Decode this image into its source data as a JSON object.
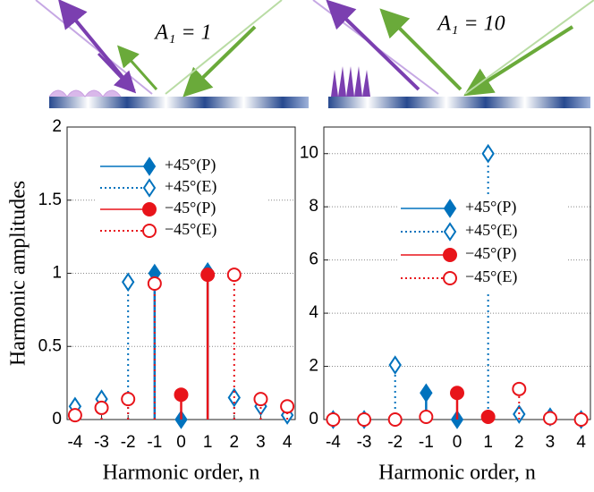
{
  "chart_data": [
    {
      "type": "stem",
      "annotation": "A₁ = 1",
      "ylabel": "Harmonic amplitudes",
      "xlabel": "Harmonic order, n",
      "xlim": [
        -4.3,
        4.3
      ],
      "xticks": [
        -4,
        -3,
        -2,
        -1,
        0,
        1,
        2,
        3,
        4
      ],
      "ylim": [
        0,
        2
      ],
      "yticks": [
        0,
        0.5,
        1,
        1.5,
        2
      ],
      "grid": true,
      "series": [
        {
          "name": "+45°(P)",
          "color": "#0072bd",
          "marker": "diamond",
          "filled": true,
          "line": "solid",
          "x": [
            -1,
            0,
            1
          ],
          "values": [
            1.0,
            0,
            1.01
          ]
        },
        {
          "name": "+45°(E)",
          "color": "#0072bd",
          "marker": "diamond",
          "filled": false,
          "line": "dotted",
          "x": [
            -4,
            -3,
            -2,
            2,
            3,
            4
          ],
          "values": [
            0.09,
            0.14,
            0.94,
            0.15,
            0.09,
            0.03
          ]
        },
        {
          "name": "−45°(P)",
          "color": "#e8141a",
          "marker": "circle",
          "filled": true,
          "line": "solid",
          "x": [
            0,
            1
          ],
          "values": [
            0.17,
            0.99
          ]
        },
        {
          "name": "−45°(E)",
          "color": "#e8141a",
          "marker": "circle",
          "filled": false,
          "line": "dotted",
          "x": [
            -4,
            -3,
            -2,
            -1,
            2,
            3,
            4
          ],
          "values": [
            0.03,
            0.08,
            0.14,
            0.93,
            0.99,
            0.14,
            0.09
          ]
        }
      ]
    },
    {
      "type": "stem",
      "annotation": "A₁ = 10",
      "xlabel": "Harmonic order, n",
      "xlim": [
        -4.3,
        4.3
      ],
      "xticks": [
        -4,
        -3,
        -2,
        -1,
        0,
        1,
        2,
        3,
        4
      ],
      "ylim": [
        0,
        11
      ],
      "yticks": [
        0,
        2,
        4,
        6,
        8,
        10
      ],
      "grid": true,
      "series": [
        {
          "name": "+45°(P)",
          "color": "#0072bd",
          "marker": "diamond",
          "filled": true,
          "line": "solid",
          "x": [
            -1,
            0
          ],
          "values": [
            1.0,
            0
          ]
        },
        {
          "name": "+45°(E)",
          "color": "#0072bd",
          "marker": "diamond",
          "filled": false,
          "line": "dotted",
          "x": [
            -4,
            -3,
            -2,
            1,
            2,
            3,
            4
          ],
          "values": [
            0,
            0,
            2.05,
            10,
            0.2,
            0.1,
            0
          ]
        },
        {
          "name": "−45°(P)",
          "color": "#e8141a",
          "marker": "circle",
          "filled": true,
          "line": "solid",
          "x": [
            0,
            1
          ],
          "values": [
            1.0,
            0.1
          ]
        },
        {
          "name": "−45°(E)",
          "color": "#e8141a",
          "marker": "circle",
          "filled": false,
          "line": "dotted",
          "x": [
            -4,
            -3,
            -2,
            -1,
            2,
            3,
            4
          ],
          "values": [
            0,
            0,
            0,
            0.1,
            1.15,
            0.05,
            0
          ]
        }
      ]
    }
  ]
}
